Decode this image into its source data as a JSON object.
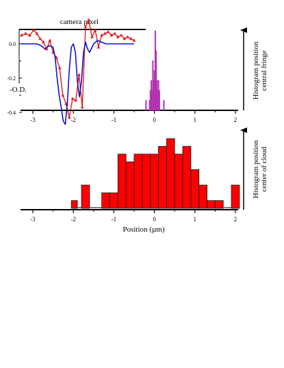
{
  "chart_data": [
    {
      "type": "line",
      "title": "",
      "x_axis_label": "camera pixel",
      "y_axis_label": "-O.D.",
      "ylim": [
        -0.45,
        0.15
      ],
      "y_ticks": [
        0.0,
        -0.2,
        -0.4
      ],
      "y_tick_labels": [
        "0.0",
        "-0.2",
        "-0.4"
      ],
      "x_range_position_um": [
        -3.3,
        -0.5
      ],
      "series": [
        {
          "color": "#e41a1c",
          "marker": "triangle",
          "x": [
            -3.28,
            -3.18,
            -3.08,
            -2.98,
            -2.9,
            -2.82,
            -2.74,
            -2.66,
            -2.58,
            -2.5,
            -2.42,
            -2.34,
            -2.26,
            -2.18,
            -2.1,
            -2.02,
            -1.94,
            -1.86,
            -1.78,
            -1.7,
            -1.62,
            -1.54,
            -1.46,
            -1.38,
            -1.3,
            -1.22,
            -1.14,
            -1.06,
            -0.98,
            -0.9,
            -0.82,
            -0.74,
            -0.66,
            -0.58,
            -0.5
          ],
          "y": [
            0.05,
            0.06,
            0.05,
            0.08,
            0.06,
            0.03,
            0.01,
            -0.03,
            0.02,
            -0.05,
            -0.08,
            -0.14,
            -0.3,
            -0.35,
            -0.43,
            -0.32,
            -0.33,
            -0.18,
            -0.37,
            0.1,
            0.14,
            0.04,
            0.08,
            -0.02,
            0.05,
            0.06,
            0.07,
            0.05,
            0.06,
            0.04,
            0.05,
            0.03,
            0.04,
            0.03,
            0.02
          ]
        },
        {
          "color": "#1010d0",
          "marker": "none",
          "x": [
            -3.3,
            -3.1,
            -2.9,
            -2.8,
            -2.7,
            -2.6,
            -2.5,
            -2.45,
            -2.4,
            -2.35,
            -2.3,
            -2.25,
            -2.2,
            -2.15,
            -2.1,
            -2.05,
            -2.0,
            -1.95,
            -1.9,
            -1.85,
            -1.8,
            -1.75,
            -1.7,
            -1.65,
            -1.6,
            -1.5,
            -1.4,
            -1.3,
            -1.2,
            -1.0,
            -0.8,
            -0.6,
            -0.5
          ],
          "y": [
            0.0,
            0.0,
            0.0,
            -0.01,
            -0.03,
            -0.01,
            -0.02,
            -0.08,
            -0.2,
            -0.3,
            -0.37,
            -0.45,
            -0.47,
            -0.35,
            -0.15,
            -0.02,
            0.0,
            -0.05,
            -0.22,
            -0.31,
            -0.22,
            -0.05,
            0.01,
            -0.03,
            -0.05,
            0.0,
            0.02,
            0.01,
            0.0,
            0.0,
            0.0,
            0.0,
            0.0
          ]
        }
      ]
    },
    {
      "type": "bar",
      "title": "",
      "y_axis_label": "Histogram position central fringe",
      "xlim": [
        -3,
        2
      ],
      "x_ticks": [
        -3,
        -2,
        -1,
        0,
        1,
        2
      ],
      "x_tick_labels": [
        "-3",
        "-2",
        "-1",
        "0",
        "1",
        "2"
      ],
      "color": "#b030b0",
      "bins": [
        -0.22,
        -0.2,
        -0.13,
        -0.11,
        -0.09,
        -0.07,
        -0.05,
        -0.03,
        -0.01,
        0.01,
        0.03,
        0.05,
        0.07,
        0.09,
        0.11,
        0.13,
        0.22,
        0.24
      ],
      "counts": [
        1,
        0,
        1,
        2,
        3,
        2,
        5,
        3,
        4,
        8,
        6,
        3,
        2,
        3,
        2,
        0,
        1
      ]
    },
    {
      "type": "bar",
      "title": "",
      "x_axis_label": "Position (µm)",
      "y_axis_label": "Histogram position center of cloud",
      "xlim": [
        -3,
        2
      ],
      "x_ticks": [
        -3,
        -2,
        -1,
        0,
        1,
        2
      ],
      "x_tick_labels": [
        "-3",
        "-2",
        "-1",
        "0",
        "1",
        "2"
      ],
      "color": "#ff0000",
      "bins": [
        -2.05,
        -1.9,
        -1.8,
        -1.6,
        -1.4,
        -1.3,
        -1.1,
        -0.9,
        -0.7,
        -0.5,
        -0.3,
        -0.1,
        0.1,
        0.3,
        0.5,
        0.7,
        0.9,
        1.1,
        1.3,
        1.5,
        1.7,
        1.9,
        2.1
      ],
      "counts": [
        1,
        0,
        3,
        0,
        0,
        2,
        2,
        7,
        6,
        7,
        7,
        7,
        8,
        9,
        7,
        8,
        5,
        3,
        1,
        1,
        0,
        3
      ]
    }
  ]
}
